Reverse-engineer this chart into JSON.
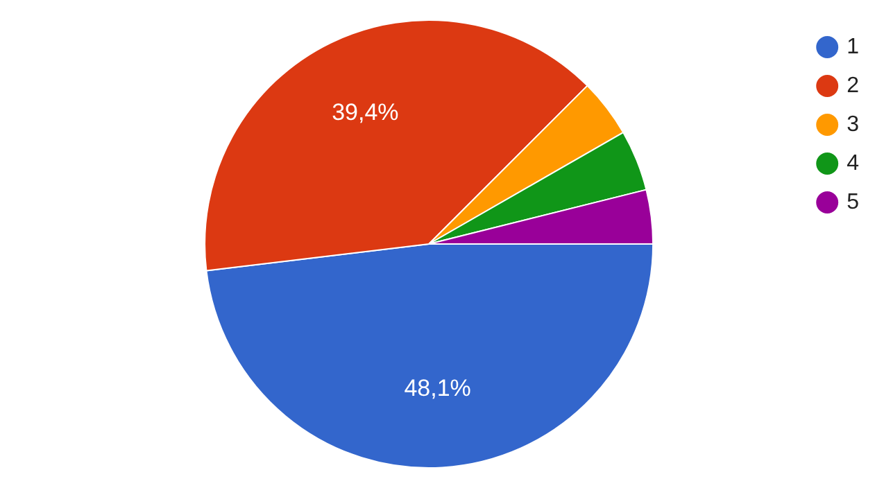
{
  "chart_data": {
    "type": "pie",
    "categories": [
      "1",
      "2",
      "3",
      "4",
      "5"
    ],
    "values": [
      48.1,
      39.4,
      4.2,
      4.4,
      3.9
    ],
    "colors": [
      "#3366cc",
      "#dc3912",
      "#ff9900",
      "#109618",
      "#990099"
    ],
    "value_labels": [
      "48,1%",
      "39,4%",
      null,
      null,
      null
    ],
    "legend": "top right"
  }
}
